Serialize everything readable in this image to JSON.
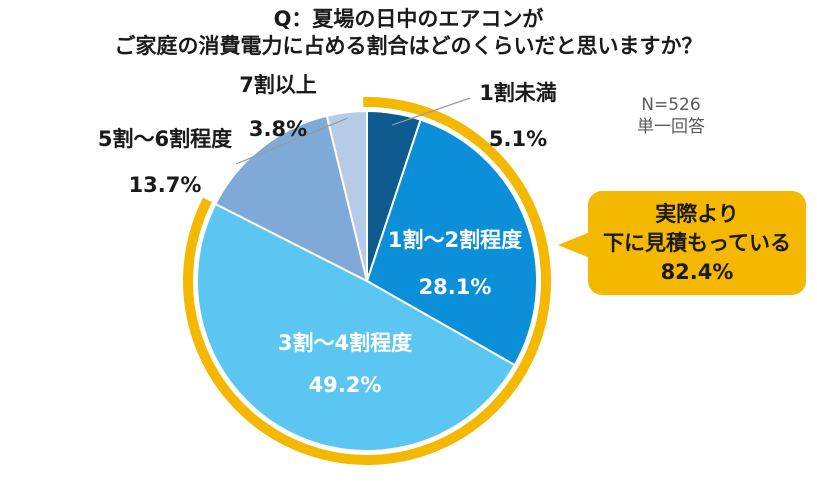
{
  "chart_data": {
    "type": "pie",
    "title": "Q：夏場の日中のエアコンが",
    "subtitle": "ご家庭の消費電力に占める割合はどのくらいだと思いますか？",
    "sample_note_line1": "N=526",
    "sample_note_line2": "単一回答",
    "start_angle_deg": 0,
    "direction": "clockwise",
    "slices": [
      {
        "label": "1割未満",
        "value": 5.1,
        "value_text": "5.1%",
        "color": "#0d5a8f"
      },
      {
        "label": "1割～2割程度",
        "value": 28.1,
        "value_text": "28.1%",
        "color": "#0a8fd8"
      },
      {
        "label": "3割～4割程度",
        "value": 49.2,
        "value_text": "49.2%",
        "color": "#5cc6f2"
      },
      {
        "label": "5割～6割程度",
        "value": 13.7,
        "value_text": "13.7%",
        "color": "#7fa9d6"
      },
      {
        "label": "7割以上",
        "value": 3.8,
        "value_text": "3.8%",
        "color": "#b6cbe8"
      }
    ],
    "highlight": {
      "value": 82.4,
      "covers_slices": [
        0,
        1,
        2
      ],
      "ring_color": "#f5b800",
      "callout_line1": "実際より",
      "callout_line2": "下に見積もっている",
      "callout_line3": "82.4%"
    }
  }
}
